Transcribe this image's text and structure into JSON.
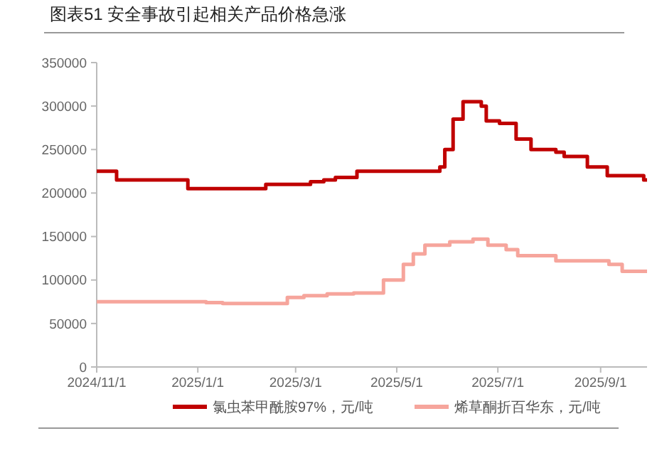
{
  "chart_data": {
    "type": "step",
    "title": "图表51  安全事故引起相关产品价格急涨",
    "xlim": [
      "2024-11-01",
      "2025-09-29"
    ],
    "xticks": [
      {
        "value": "2024-11-01",
        "label": "2024/11/1"
      },
      {
        "value": "2025-01-01",
        "label": "2025/1/1"
      },
      {
        "value": "2025-03-01",
        "label": "2025/3/1"
      },
      {
        "value": "2025-05-01",
        "label": "2025/5/1"
      },
      {
        "value": "2025-07-01",
        "label": "2025/7/1"
      },
      {
        "value": "2025-09-01",
        "label": "2025/9/1"
      }
    ],
    "ylim": [
      0,
      350000
    ],
    "yticks": [
      0,
      50000,
      100000,
      150000,
      200000,
      250000,
      300000,
      350000
    ],
    "grid": false,
    "legend": "bottom",
    "series": [
      {
        "name": "氯虫苯甲酰胺97%，元/吨",
        "color": "#c00000",
        "x": [
          "2024-11-01",
          "2024-11-13",
          "2024-12-26",
          "2025-02-11",
          "2025-03-10",
          "2025-03-18",
          "2025-03-25",
          "2025-04-07",
          "2025-05-27",
          "2025-05-30",
          "2025-06-04",
          "2025-06-10",
          "2025-06-21",
          "2025-06-24",
          "2025-07-02",
          "2025-07-12",
          "2025-07-21",
          "2025-08-05",
          "2025-08-10",
          "2025-08-24",
          "2025-09-05",
          "2025-09-27",
          "2025-09-29"
        ],
        "values": [
          225000,
          215000,
          205000,
          210000,
          213000,
          215000,
          218000,
          225000,
          230000,
          250000,
          285000,
          305000,
          300000,
          283000,
          280000,
          262000,
          250000,
          247000,
          242000,
          230000,
          220000,
          215000,
          215000
        ]
      },
      {
        "name": "烯草酮折百华东，元/吨",
        "color": "#f6a59c",
        "x": [
          "2024-11-01",
          "2025-01-06",
          "2025-01-16",
          "2025-02-24",
          "2025-03-06",
          "2025-03-20",
          "2025-04-05",
          "2025-04-23",
          "2025-05-05",
          "2025-05-11",
          "2025-05-18",
          "2025-06-02",
          "2025-06-16",
          "2025-06-25",
          "2025-07-06",
          "2025-07-13",
          "2025-08-05",
          "2025-09-06",
          "2025-09-14",
          "2025-09-29"
        ],
        "values": [
          75000,
          74000,
          73000,
          80000,
          82000,
          84000,
          85000,
          100000,
          118000,
          130000,
          140000,
          144000,
          147000,
          140000,
          135000,
          128000,
          122000,
          118000,
          110000,
          110000
        ]
      }
    ]
  }
}
